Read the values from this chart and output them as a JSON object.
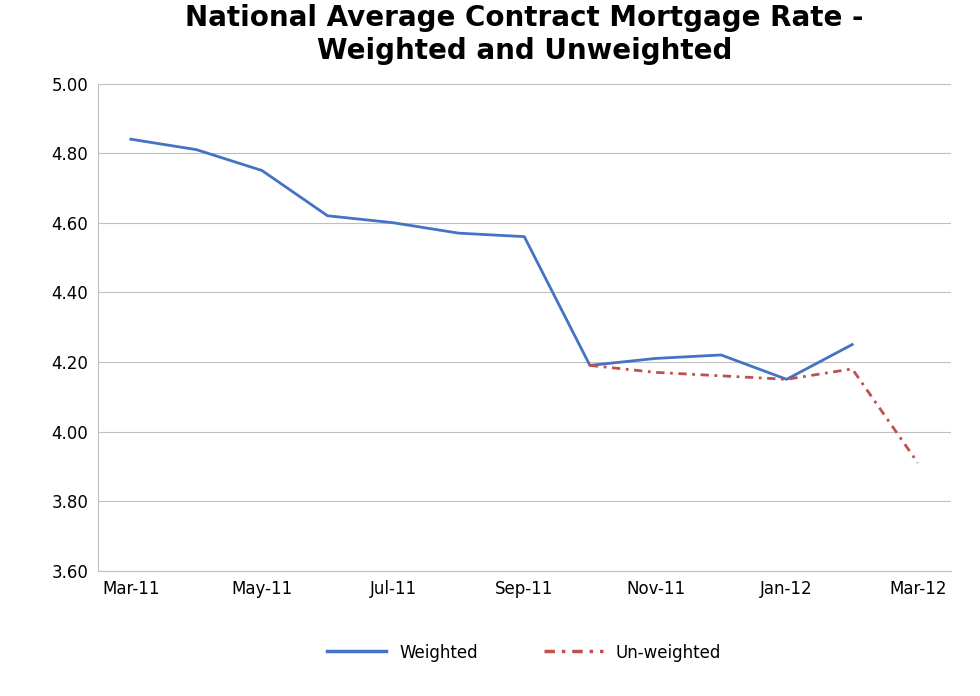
{
  "title": "National Average Contract Mortgage Rate -\nWeighted and Unweighted",
  "weighted_x": [
    0,
    1,
    2,
    3,
    4,
    5,
    6,
    7,
    8,
    9,
    10,
    11
  ],
  "weighted_y": [
    4.84,
    4.81,
    4.75,
    4.62,
    4.6,
    4.57,
    4.56,
    4.19,
    4.21,
    4.22,
    4.15,
    4.25
  ],
  "unweighted_x": [
    7,
    8,
    9,
    10,
    11,
    12
  ],
  "unweighted_y": [
    4.19,
    4.17,
    4.16,
    4.15,
    4.18,
    3.91
  ],
  "x_tick_positions": [
    0,
    2,
    4,
    6,
    8,
    10,
    12
  ],
  "x_tick_labels": [
    "Mar-11",
    "May-11",
    "Jul-11",
    "Sep-11",
    "Nov-11",
    "Jan-12",
    "Mar-12"
  ],
  "ylim": [
    3.6,
    5.0
  ],
  "yticks": [
    3.6,
    3.8,
    4.0,
    4.2,
    4.4,
    4.6,
    4.8,
    5.0
  ],
  "weighted_color": "#4472C4",
  "unweighted_color": "#C0504D",
  "background_color": "#FFFFFF",
  "grid_color": "#C0C0C0",
  "legend_weighted": "Weighted",
  "legend_unweighted": "Un-weighted",
  "title_fontsize": 20,
  "tick_fontsize": 12,
  "linewidth": 2.0
}
